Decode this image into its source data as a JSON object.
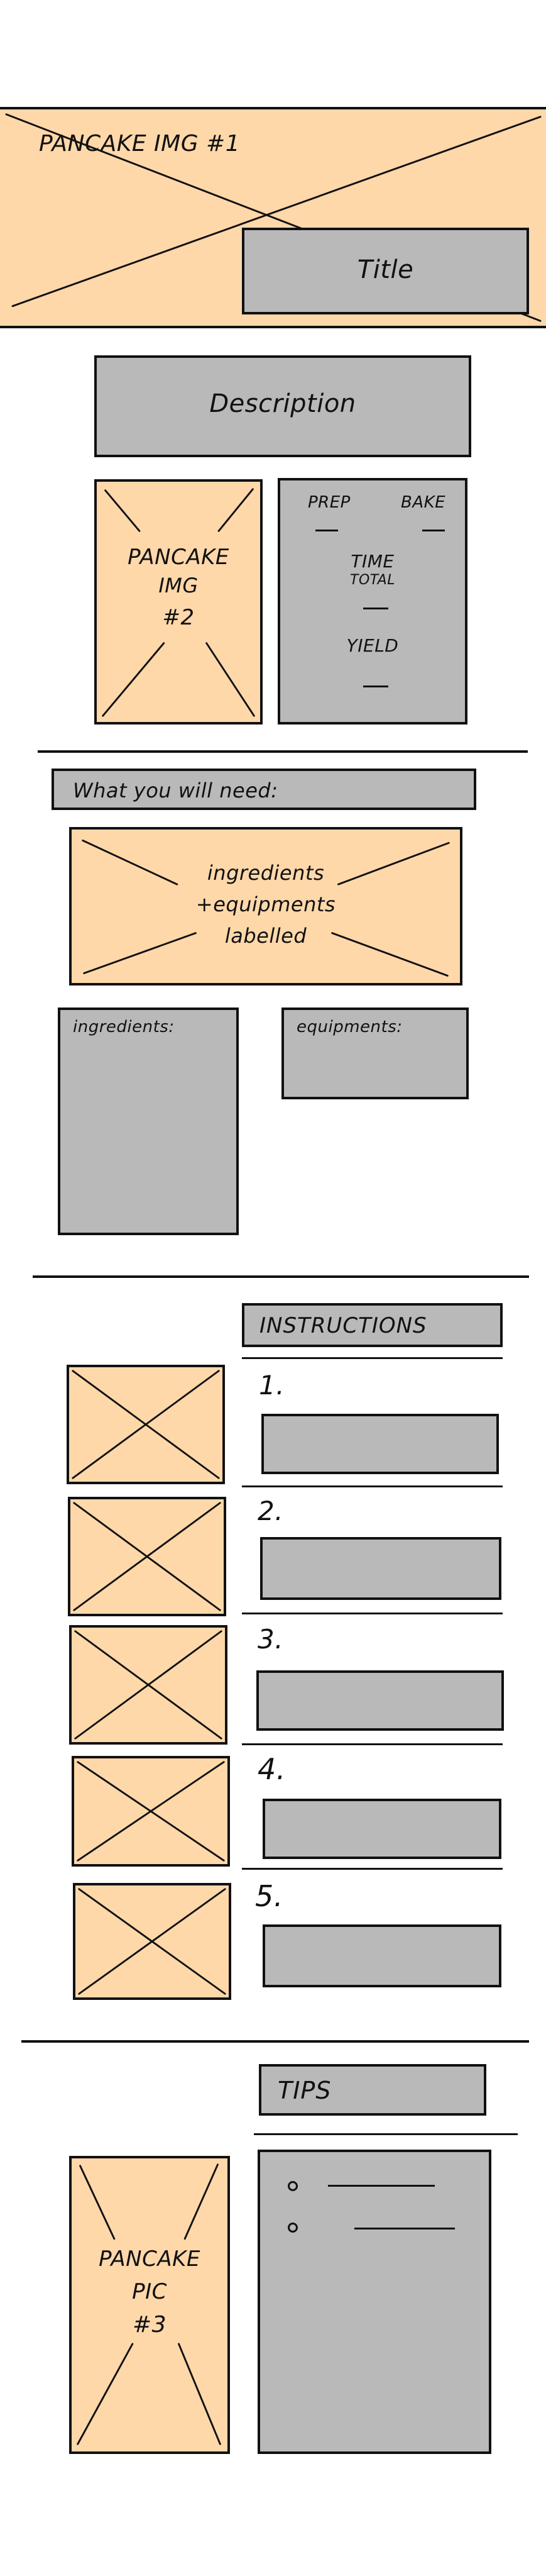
{
  "hero": {
    "image_label": "PANCAKE IMG #1",
    "title": "Title"
  },
  "description": "Description",
  "image2": {
    "line1": "PANCAKE",
    "line2": "IMG",
    "line3": "#2"
  },
  "times": {
    "prep": "PREP",
    "bake": "BAKE",
    "total_line1": "TIME",
    "total_line2": "TOTAL",
    "yield": "YIELD"
  },
  "needs": {
    "heading": "What you will need:",
    "image_line1": "ingredients",
    "image_line2": "+equipments",
    "image_line3": "labelled",
    "ingredients_label": "ingredients:",
    "equipments_label": "equipments:"
  },
  "instructions": {
    "heading": "INSTRUCTIONS",
    "steps": [
      "1.",
      "2.",
      "3.",
      "4.",
      "5."
    ]
  },
  "tips": {
    "heading": "TIPS"
  },
  "image3": {
    "line1": "PANCAKE",
    "line2": "PIC",
    "line3": "#3"
  },
  "colors": {
    "placeholder_image": "#ffd8aa",
    "placeholder_block": "#b9b9b9",
    "outline": "#111111"
  }
}
